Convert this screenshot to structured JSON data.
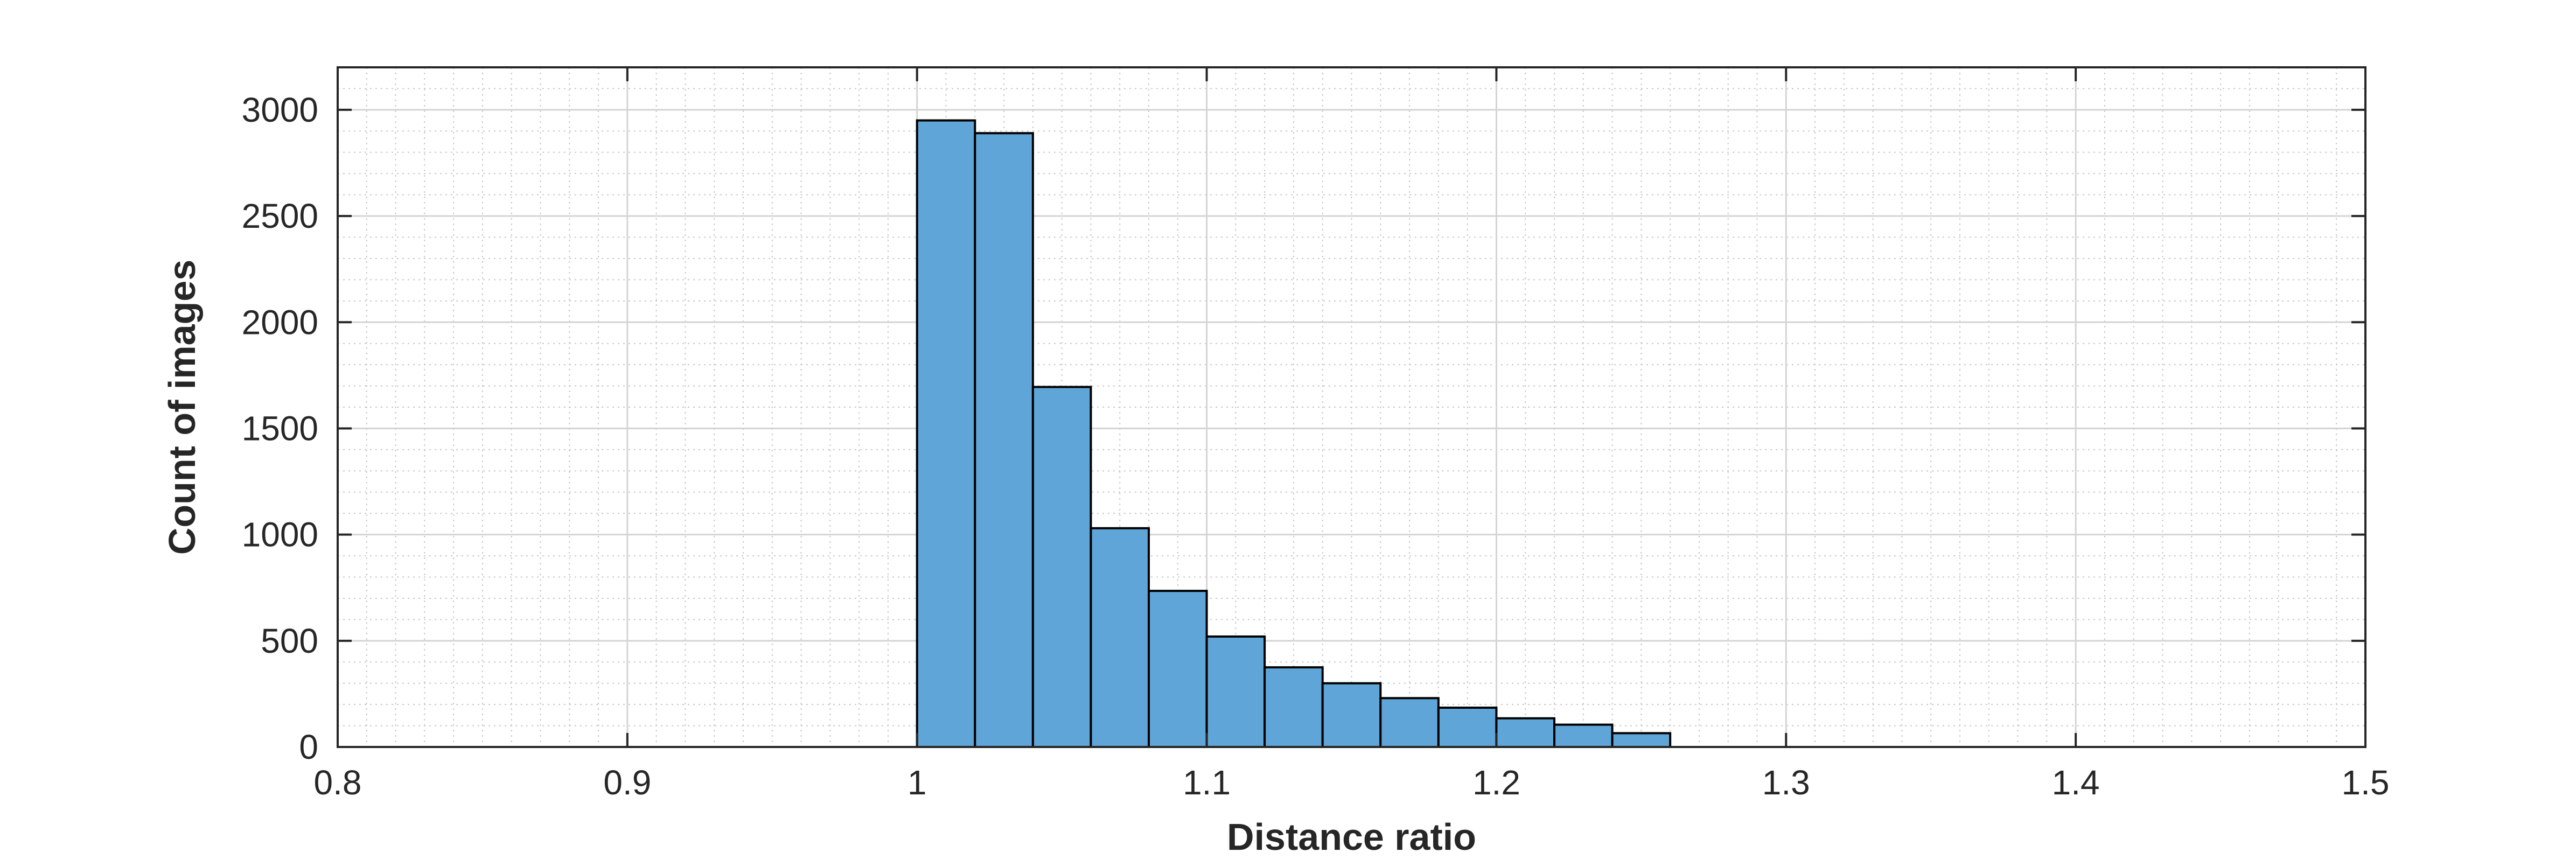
{
  "chart_data": {
    "type": "bar",
    "title": "",
    "xlabel": "Distance ratio",
    "ylabel": "Count of images",
    "xlim": [
      0.8,
      1.5
    ],
    "ylim": [
      0,
      3200
    ],
    "xticks": [
      0.8,
      0.9,
      1,
      1.1,
      1.2,
      1.3,
      1.4,
      1.5
    ],
    "xtick_labels": [
      "0.8",
      "0.9",
      "1",
      "1.1",
      "1.2",
      "1.3",
      "1.4",
      "1.5"
    ],
    "yticks": [
      0,
      500,
      1000,
      1500,
      2000,
      2500,
      3000
    ],
    "ytick_labels": [
      "0",
      "500",
      "1000",
      "1500",
      "2000",
      "2500",
      "3000"
    ],
    "grid": "on",
    "minor_grid": "on",
    "bin_width": 0.02,
    "bin_edges": [
      1.0,
      1.02,
      1.04,
      1.06,
      1.08,
      1.1,
      1.12,
      1.14,
      1.16,
      1.18,
      1.2,
      1.22,
      1.24,
      1.26
    ],
    "values": [
      2950,
      2890,
      1695,
      1030,
      735,
      520,
      375,
      300,
      230,
      185,
      135,
      105,
      65
    ],
    "bar_color": "#5fa5d8",
    "edge_color": "#000000"
  }
}
